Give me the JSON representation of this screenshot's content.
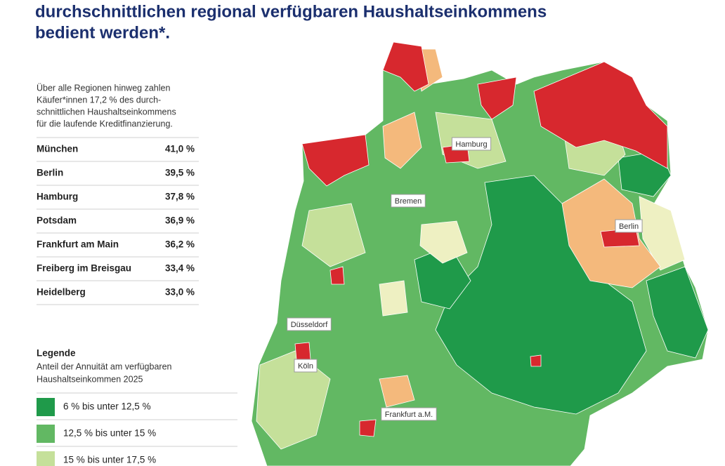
{
  "header": {
    "title_lines": [
      "durchschnittlichen regional verfügbaren Haushaltseinkommens",
      "bedient werden*."
    ]
  },
  "intro": {
    "lines": [
      "Über alle Regionen hinweg zahlen",
      "Käufer*innen 17,2 % des durch-",
      "schnittlichen Haushaltseinkommens",
      "für die laufende Kreditfinanzierung."
    ]
  },
  "table": {
    "rows": [
      [
        "München",
        "41,0 %"
      ],
      [
        "Berlin",
        "39,5 %"
      ],
      [
        "Hamburg",
        "37,8 %"
      ],
      [
        "Potsdam",
        "36,9 %"
      ],
      [
        "Frankfurt am Main",
        "36,2 %"
      ],
      [
        "Freiberg im Breisgau",
        "33,4 %"
      ],
      [
        "Heidelberg",
        "33,0 %"
      ]
    ]
  },
  "legend": {
    "title": "Legende",
    "subtitle_lines": [
      "Anteil der Annuität am verfügbaren",
      "Haushaltseinkommen 2025"
    ],
    "items": [
      {
        "label": "6 % bis unter 12,5 %",
        "color": "#1f9a4a"
      },
      {
        "label": "12,5 % bis unter 15 %",
        "color": "#62b863"
      },
      {
        "label": "15 % bis unter 17,5 %",
        "color": "#c5e09a"
      }
    ]
  },
  "map": {
    "labels": [
      "Hamburg",
      "Bremen",
      "Berlin",
      "Düsseldorf",
      "Köln",
      "Frankfurt a.M."
    ]
  }
}
